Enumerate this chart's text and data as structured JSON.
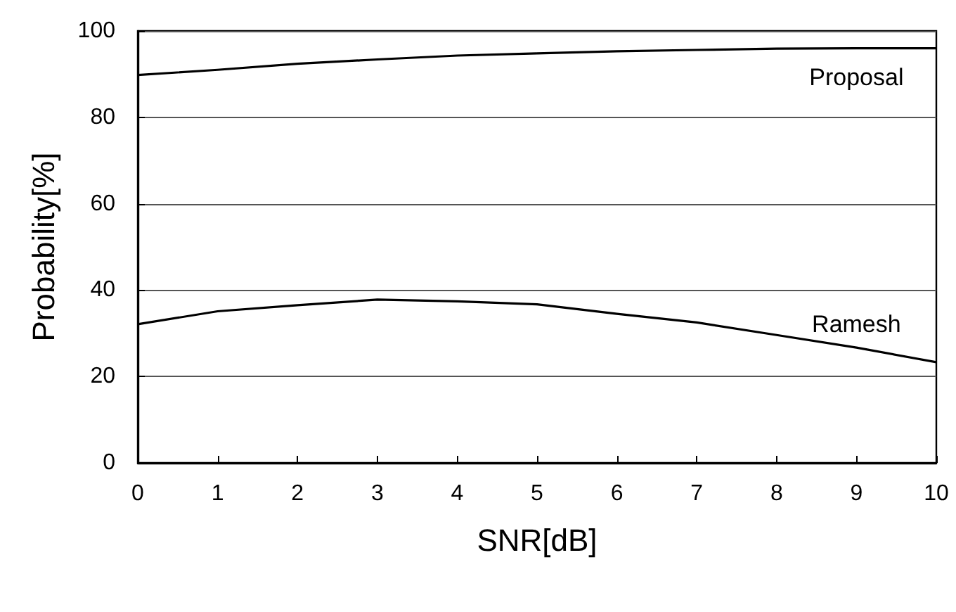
{
  "chart_data": {
    "type": "line",
    "xlabel": "SNR[dB]",
    "ylabel": "Probability[%]",
    "x": [
      0,
      1,
      2,
      3,
      4,
      5,
      6,
      7,
      8,
      9,
      10
    ],
    "series": [
      {
        "name": "Proposal",
        "color": "#000000",
        "values": [
          89.8,
          91,
          92.4,
          93.4,
          94.3,
          94.8,
          95.3,
          95.6,
          95.9,
          96,
          96
        ]
      },
      {
        "name": "Ramesh",
        "color": "#000000",
        "values": [
          32.1,
          35.1,
          36.5,
          37.8,
          37.4,
          36.7,
          34.5,
          32.5,
          29.6,
          26.7,
          23.3
        ]
      }
    ],
    "xlim": [
      0,
      10
    ],
    "xticks": [
      0,
      1,
      2,
      3,
      4,
      5,
      6,
      7,
      8,
      9,
      10
    ],
    "ylim": [
      0,
      100
    ],
    "yticks": [
      0,
      20,
      40,
      60,
      80,
      100
    ],
    "grid": "y",
    "legend": false,
    "marker": "none",
    "line_style": "solid"
  }
}
